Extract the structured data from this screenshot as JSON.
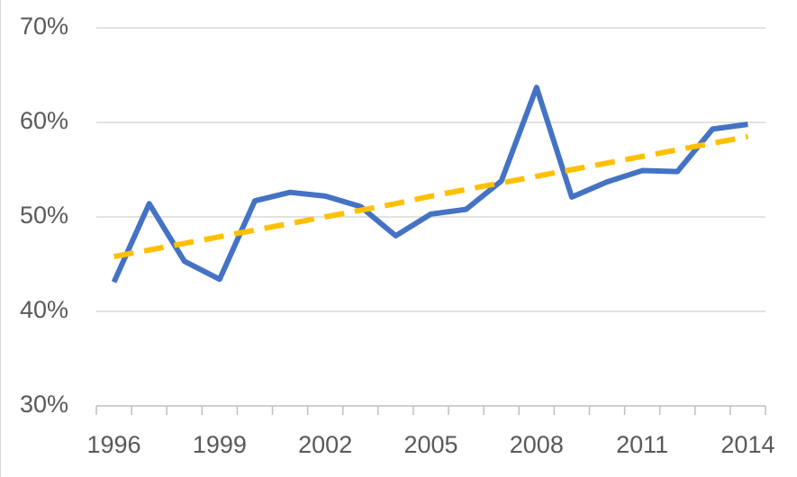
{
  "chart_data": {
    "type": "line",
    "categories": [
      "1996",
      null,
      null,
      "1999",
      null,
      null,
      "2002",
      null,
      null,
      "2005",
      null,
      null,
      "2008",
      null,
      null,
      "2011",
      null,
      null,
      "2014"
    ],
    "series": [
      {
        "color": "#4472c4",
        "values": [
          43.1,
          51.4,
          45.3,
          43.4,
          51.7,
          52.6,
          52.2,
          51.1,
          48.0,
          50.3,
          50.8,
          53.8,
          63.7,
          52.1,
          53.7,
          54.9,
          54.8,
          59.3,
          59.8
        ]
      },
      {
        "color": "#ffc000",
        "dashed": true,
        "values": [
          45.8,
          46.5,
          47.2,
          47.9,
          48.6,
          49.3,
          50.0,
          50.7,
          51.4,
          52.2,
          52.9,
          53.6,
          54.3,
          55.0,
          55.7,
          56.4,
          57.1,
          57.8,
          58.5
        ]
      }
    ],
    "ylim": [
      30,
      70
    ],
    "yticks": [
      {
        "value": 30,
        "label": "30%"
      },
      {
        "value": 40,
        "label": "40%"
      },
      {
        "value": 50,
        "label": "50%"
      },
      {
        "value": 60,
        "label": "60%"
      },
      {
        "value": 70,
        "label": "70%"
      }
    ],
    "grid": true
  }
}
